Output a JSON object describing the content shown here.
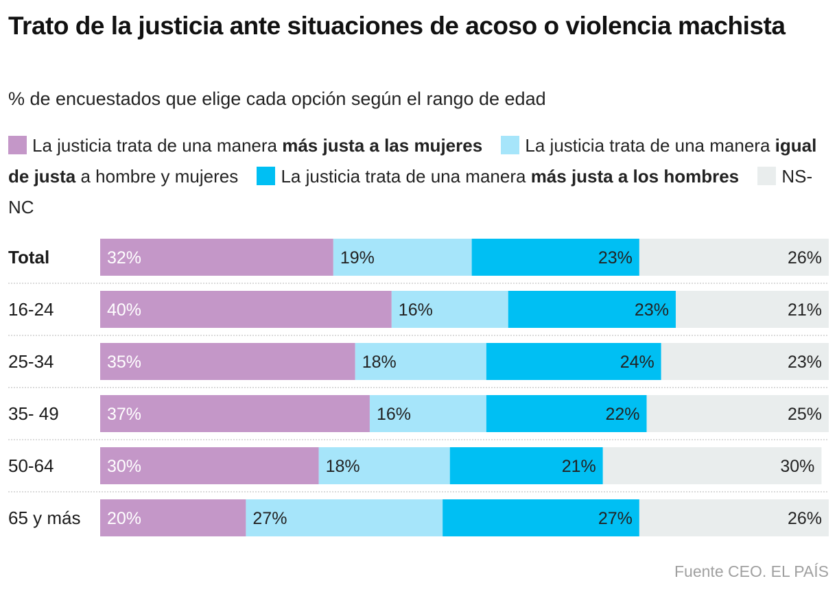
{
  "title": "Trato de la justicia ante situaciones de acoso o violencia machista",
  "subtitle": "% de encuestados que elige cada opción según el rango de edad",
  "legend": {
    "item1_pre": "La justicia trata de una manera ",
    "item1_bold": "más justa a las mujeres",
    "item2_pre": "La justicia trata de una manera ",
    "item2_bold": "igual de justa",
    "item2_post": " a hombre y mujeres",
    "item3_pre": "La justicia trata de una manera ",
    "item3_bold": "más justa a los hombres",
    "item4": "NS-NC"
  },
  "source": "Fuente CEO. EL PAÍS",
  "colors": {
    "women": "#c497c8",
    "equal": "#a6e5fa",
    "men": "#00bff3",
    "nsnc": "#e9eded",
    "divider": "#b5b5b5"
  },
  "chart_data": {
    "type": "bar",
    "orientation": "horizontal",
    "stacked": true,
    "categories": [
      "Total",
      "16-24",
      "25-34",
      "35- 49",
      "50-64",
      "65 y más"
    ],
    "series": [
      {
        "name": "La justicia trata de una manera más justa a las mujeres",
        "key": "women",
        "values": [
          32,
          40,
          35,
          37,
          30,
          20
        ]
      },
      {
        "name": "La justicia trata de una manera igual de justa a hombre y mujeres",
        "key": "equal",
        "values": [
          19,
          16,
          18,
          16,
          18,
          27
        ]
      },
      {
        "name": "La justicia trata de una manera más justa a los hombres",
        "key": "men",
        "values": [
          23,
          23,
          24,
          22,
          21,
          27
        ]
      },
      {
        "name": "NS-NC",
        "key": "nsnc",
        "values": [
          26,
          21,
          23,
          25,
          30,
          26
        ]
      }
    ],
    "value_suffix": "%",
    "xlim": [
      0,
      100
    ]
  }
}
